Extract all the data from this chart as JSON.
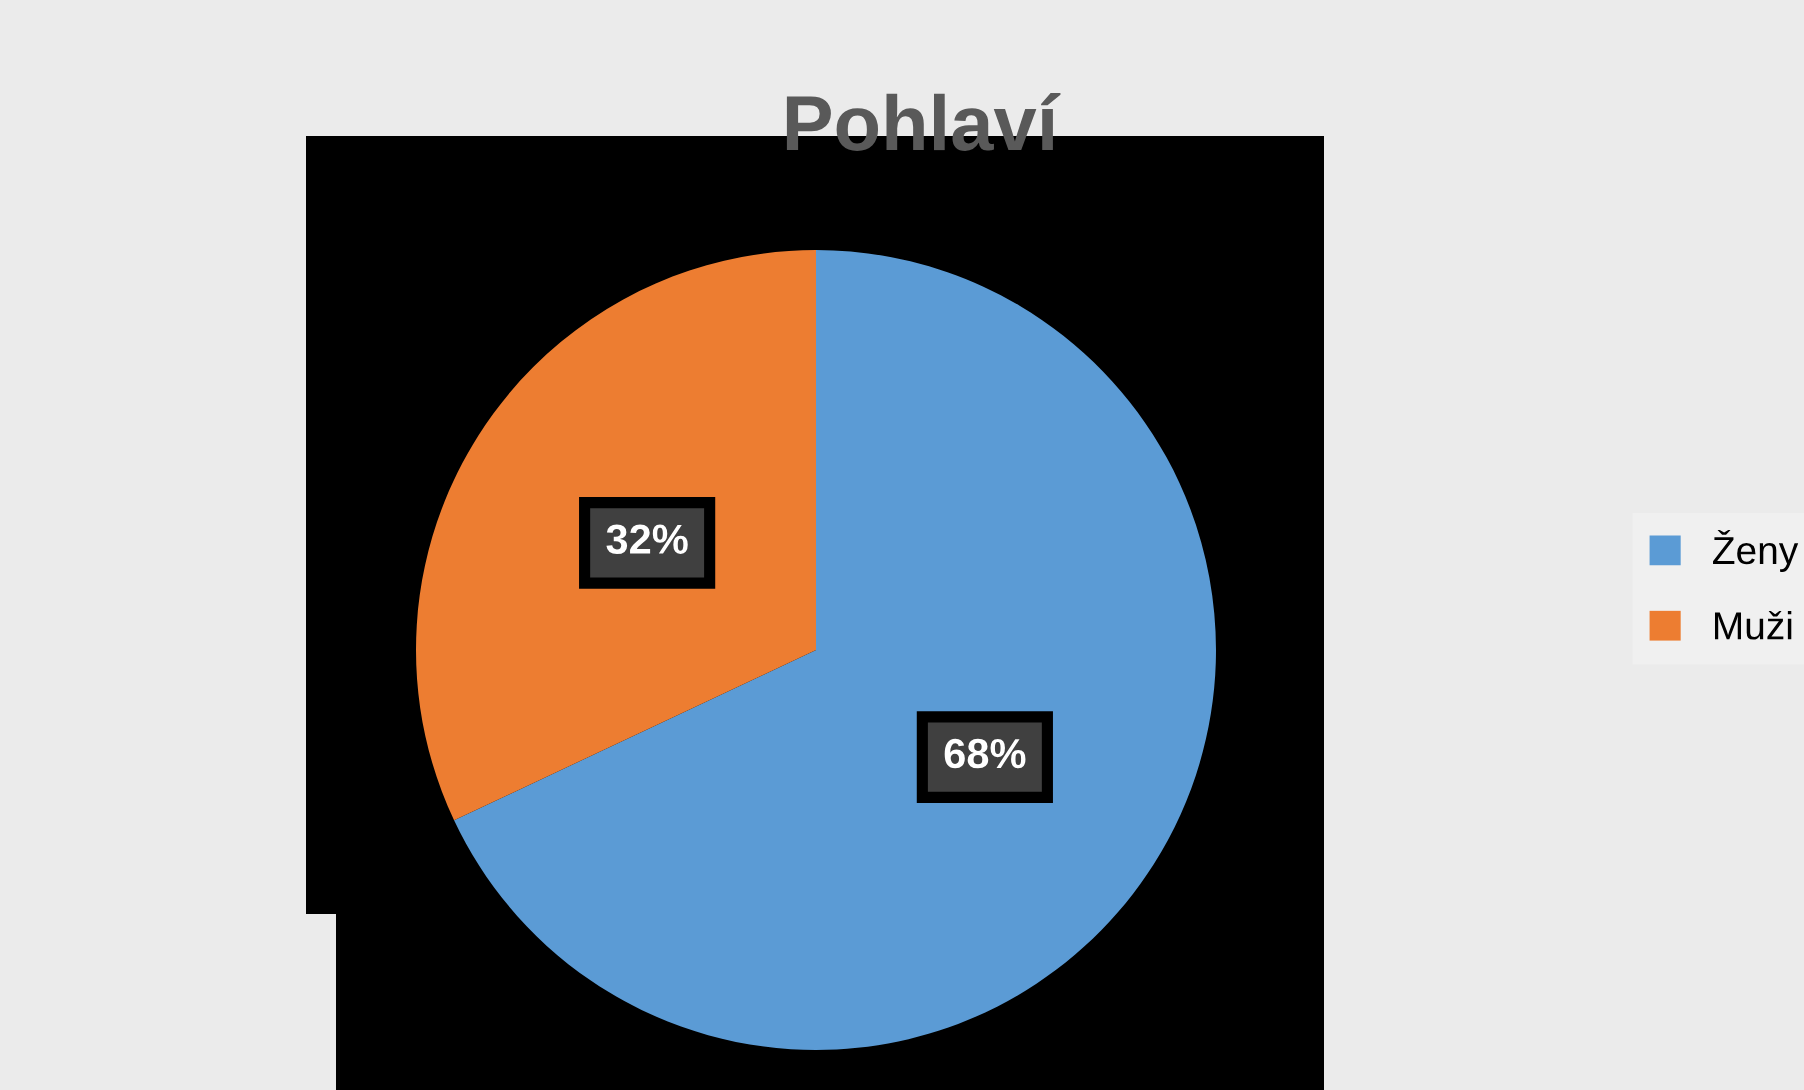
{
  "chart_data": {
    "type": "pie",
    "title": "Pohlaví",
    "categories": [
      "Ženy",
      "Muži"
    ],
    "values": [
      68,
      32
    ],
    "colors": [
      "#5b9bd5",
      "#ed7d31"
    ],
    "value_labels": [
      "68%",
      "32%"
    ],
    "legend": "right"
  }
}
